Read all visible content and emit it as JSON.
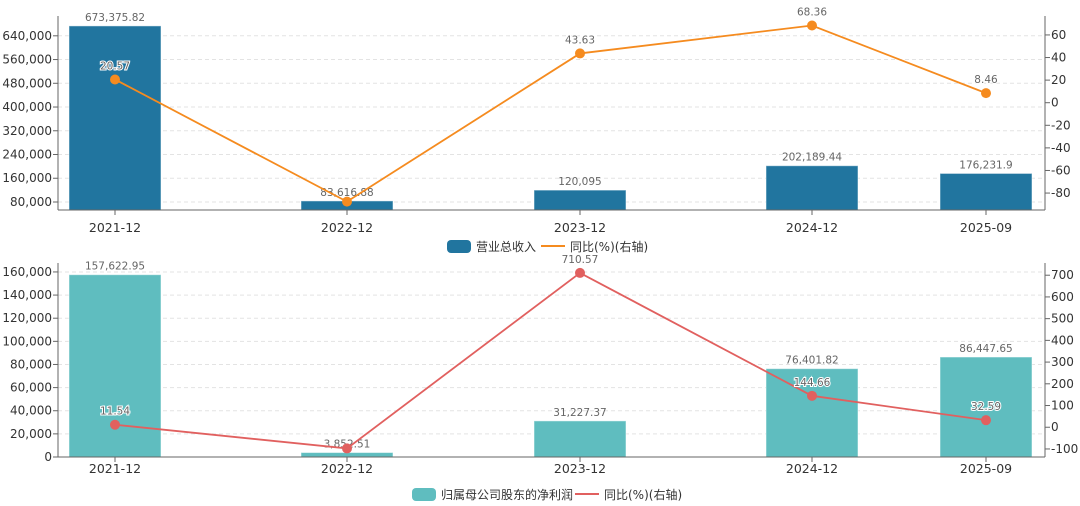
{
  "colors": {
    "revenue_bar": "#21759f",
    "revenue_line": "#f58b1f",
    "profit_bar": "#5fbdbf",
    "profit_line": "#e1605f",
    "grid": "#e3e3e3",
    "axis": "#666666"
  },
  "chart_data": [
    {
      "type": "bar",
      "categories": [
        "2021-12",
        "2022-12",
        "2023-12",
        "2024-12",
        "2025-09"
      ],
      "series": [
        {
          "name": "营业总收入",
          "kind": "bar",
          "axis": "left",
          "values": [
            673375.82,
            83616.88,
            120095,
            202189.44,
            176231.9
          ],
          "labels": [
            "673,375.82",
            "83,616.88",
            "120,095",
            "202,189.44",
            "176,231.9"
          ]
        },
        {
          "name": "同比(%)(右轴)",
          "kind": "line",
          "axis": "right",
          "values": [
            20.57,
            -87.58,
            43.63,
            68.36,
            8.46
          ],
          "labels": [
            "20.57",
            "",
            "43.63",
            "68.36",
            "8.46"
          ]
        }
      ],
      "left_axis": {
        "ylim": [
          53000,
          700000
        ],
        "ticks": [
          80000,
          160000,
          240000,
          320000,
          400000,
          480000,
          560000,
          640000
        ],
        "tick_labels": [
          "80,000",
          "160,000",
          "240,000",
          "320,000",
          "400,000",
          "480,000",
          "560,000",
          "640,000"
        ]
      },
      "right_axis": {
        "ylim": [
          -95,
          75
        ],
        "ticks": [
          -80,
          -60,
          -40,
          -20,
          0,
          20,
          40,
          60
        ],
        "tick_labels": [
          "-80",
          "-60",
          "-40",
          "-20",
          "0",
          "20",
          "40",
          "60"
        ]
      },
      "grid": true,
      "legend": "bottom"
    },
    {
      "type": "bar",
      "categories": [
        "2021-12",
        "2022-12",
        "2023-12",
        "2024-12",
        "2025-09"
      ],
      "series": [
        {
          "name": "归属母公司股东的净利润",
          "kind": "bar",
          "axis": "left",
          "values": [
            157622.95,
            3852.51,
            31227.37,
            76401.82,
            86447.65
          ],
          "labels": [
            "157,622.95",
            "3,852.51",
            "31,227.37",
            "76,401.82",
            "86,447.65"
          ]
        },
        {
          "name": "同比(%)(右轴)",
          "kind": "line",
          "axis": "right",
          "values": [
            11.54,
            -97.56,
            710.57,
            144.66,
            32.59
          ],
          "labels": [
            "11.54",
            "",
            "710.57",
            "144.66",
            "32.59"
          ]
        }
      ],
      "left_axis": {
        "ylim": [
          0,
          166000
        ],
        "ticks": [
          0,
          20000,
          40000,
          60000,
          80000,
          100000,
          120000,
          140000,
          160000
        ],
        "tick_labels": [
          "0",
          "20,000",
          "40,000",
          "60,000",
          "80,000",
          "100,000",
          "120,000",
          "140,000",
          "160,000"
        ]
      },
      "right_axis": {
        "ylim": [
          -137,
          747
        ],
        "ticks": [
          -100,
          0,
          100,
          200,
          300,
          400,
          500,
          600,
          700
        ],
        "tick_labels": [
          "-100",
          "0",
          "100",
          "200",
          "300",
          "400",
          "500",
          "600",
          "700"
        ]
      },
      "grid": true,
      "legend": "bottom"
    }
  ]
}
